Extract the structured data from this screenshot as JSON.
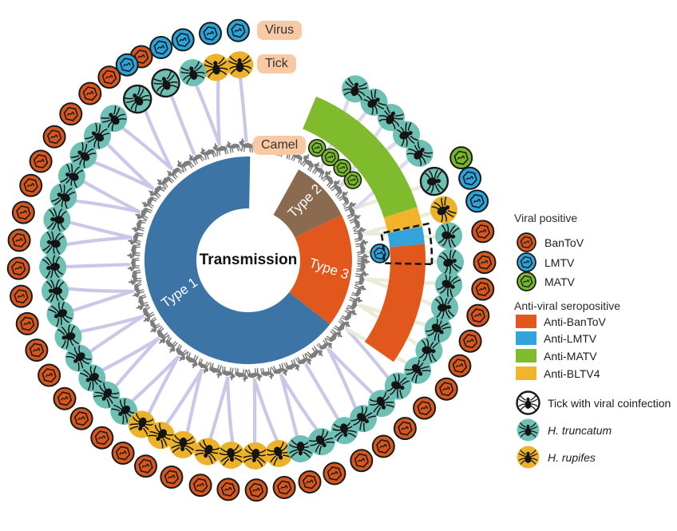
{
  "figure": {
    "center_label": "Transmission",
    "ring_labels": {
      "virus": "Virus",
      "tick": "Tick",
      "camel": "Camel"
    },
    "donut": {
      "segments": [
        {
          "label": "Type 1",
          "color": "#3b74a5",
          "start": 89,
          "end": 322
        },
        {
          "label": "Type 2",
          "color": "#8b6b50",
          "start": 26,
          "end": 61
        },
        {
          "label": "Type 3",
          "color": "#e2571c",
          "start": -38,
          "end": 26
        }
      ]
    },
    "sero_arc": {
      "segments": [
        {
          "label": "Anti-MATV",
          "color": "#7fbb2d",
          "start": 17.5,
          "end": 67.5
        },
        {
          "label": "Anti-BLTV4",
          "color": "#f2b42c",
          "start": 11,
          "end": 17.5
        },
        {
          "label": "Anti-LMTV",
          "color": "#33a3dc",
          "start": 5.3,
          "end": 11
        },
        {
          "label": "Anti-BanToV",
          "color": "#e2571c",
          "start": -35,
          "end": 5.3
        }
      ]
    },
    "highlight_box": {
      "start": -1.2,
      "end": 11.5,
      "r_inner": 170,
      "r_outer": 230
    },
    "inner_markers": [
      {
        "angle": 58.5,
        "virus": "MATV"
      },
      {
        "angle": 51.5,
        "virus": "MATV"
      },
      {
        "angle": 44.5,
        "virus": "MATV"
      },
      {
        "angle": 37.5,
        "virus": "MATV"
      },
      {
        "angle": 3,
        "virus": "LMTV"
      }
    ],
    "virus_colors": {
      "BanToV": "#d8571f",
      "LMTV": "#2ca3da",
      "MATV": "#77b82a"
    },
    "tick_colors": {
      "truncatum": "#6fc0b4",
      "rupifes": "#ecb22b",
      "coinfected": "#6fc0b4"
    },
    "link_colors": {
      "purple": "#cbc7e8",
      "cream": "#e8ecd8",
      "lavender": "#dcdaf0"
    },
    "camel_color": "#7d7d7d",
    "nodes": [
      {
        "a": 92.5,
        "t": "rupifes",
        "v": [
          "LMTV"
        ],
        "link": "purple"
      },
      {
        "a": 99.5,
        "t": "rupifes",
        "v": [
          "LMTV"
        ],
        "link": "purple"
      },
      {
        "a": 106.5,
        "t": "truncatum",
        "v": [
          "LMTV"
        ],
        "link": "purple"
      },
      {
        "a": 115,
        "t": "coinfected",
        "v": [
          "BanToV",
          "LMTV"
        ],
        "link": "purple"
      },
      {
        "a": 124.5,
        "t": "coinfected",
        "v": [
          "BanToV",
          "LMTV"
        ],
        "link": "purple"
      },
      {
        "a": 133.5,
        "t": "truncatum",
        "v": [
          "BanToV"
        ],
        "link": "purple"
      },
      {
        "a": 140.5,
        "t": "truncatum",
        "v": [
          "BanToV"
        ],
        "link": "purple"
      },
      {
        "a": 147.5,
        "t": "truncatum",
        "v": [
          "BanToV"
        ],
        "link": "purple"
      },
      {
        "a": 154.5,
        "t": "truncatum",
        "v": [
          "BanToV"
        ],
        "link": "purple"
      },
      {
        "a": 161,
        "t": "truncatum",
        "v": [
          "BanToV"
        ],
        "link": "purple"
      },
      {
        "a": 168,
        "t": "truncatum",
        "v": [
          "BanToV"
        ],
        "link": "purple"
      },
      {
        "a": 175,
        "t": "truncatum",
        "v": [
          "BanToV"
        ],
        "link": "purple"
      },
      {
        "a": 182,
        "t": "truncatum",
        "v": [
          "BanToV"
        ],
        "link": "purple"
      },
      {
        "a": 189,
        "t": "truncatum",
        "v": [
          "BanToV"
        ],
        "link": "purple"
      },
      {
        "a": 196,
        "t": "truncatum",
        "v": [
          "BanToV"
        ],
        "link": "purple"
      },
      {
        "a": 203,
        "t": "truncatum",
        "v": [
          "BanToV"
        ],
        "link": "purple"
      },
      {
        "a": 210,
        "t": "truncatum",
        "v": [
          "BanToV"
        ],
        "link": "purple"
      },
      {
        "a": 217,
        "t": "truncatum",
        "v": [
          "BanToV"
        ],
        "link": "purple"
      },
      {
        "a": 223.5,
        "t": "truncatum",
        "v": [
          "BanToV"
        ],
        "link": "purple"
      },
      {
        "a": 230.5,
        "t": "truncatum",
        "v": [
          "BanToV"
        ],
        "link": "purple"
      },
      {
        "a": 237,
        "t": "rupifes",
        "v": [
          "BanToV"
        ],
        "link": "purple"
      },
      {
        "a": 243.5,
        "t": "rupifes",
        "v": [
          "BanToV"
        ],
        "link": "purple"
      },
      {
        "a": 250.5,
        "t": "rupifes",
        "v": [
          "BanToV"
        ],
        "link": "purple"
      },
      {
        "a": 258,
        "t": "rupifes",
        "v": [
          "BanToV"
        ],
        "link": "purple"
      },
      {
        "a": 265,
        "t": "rupifes",
        "v": [
          "BanToV"
        ],
        "link": "purple"
      },
      {
        "a": 272,
        "t": "rupifes",
        "v": [
          "BanToV"
        ],
        "link": "purple"
      },
      {
        "a": 279,
        "t": "rupifes",
        "v": [
          "BanToV"
        ],
        "link": "purple"
      },
      {
        "a": 285.5,
        "t": "truncatum",
        "v": [
          "BanToV"
        ],
        "link": "purple"
      },
      {
        "a": 292,
        "t": "truncatum",
        "v": [
          "BanToV"
        ],
        "link": "purple"
      },
      {
        "a": 299.5,
        "t": "truncatum",
        "v": [
          "BanToV"
        ],
        "link": "purple"
      },
      {
        "a": 306,
        "t": "truncatum",
        "v": [
          "BanToV"
        ],
        "link": "purple"
      },
      {
        "a": 313,
        "t": "truncatum",
        "v": [
          "BanToV"
        ],
        "link": "purple"
      },
      {
        "a": 320,
        "t": "truncatum",
        "v": [
          "BanToV"
        ],
        "link": "purple"
      },
      {
        "a": 327,
        "t": "truncatum",
        "v": [
          "BanToV"
        ],
        "link": "cream"
      },
      {
        "a": 333.5,
        "t": "truncatum",
        "v": [
          "BanToV"
        ],
        "link": "cream"
      },
      {
        "a": 340,
        "t": "truncatum",
        "v": [
          "BanToV"
        ],
        "link": "cream"
      },
      {
        "a": 346.5,
        "t": "truncatum",
        "v": [
          "BanToV"
        ],
        "link": "cream"
      },
      {
        "a": 353,
        "t": "truncatum",
        "v": [
          "BanToV"
        ],
        "link": "cream"
      },
      {
        "a": 359.5,
        "t": "truncatum",
        "v": [
          "BanToV"
        ],
        "link": "cream"
      },
      {
        "a": 7,
        "t": "truncatum",
        "v": [
          "BanToV"
        ],
        "link": "cream"
      },
      {
        "a": 14.5,
        "t": "rupifes",
        "v": [
          "LMTV"
        ],
        "link": "cream"
      },
      {
        "a": 23,
        "t": "coinfected",
        "v": [
          "MATV",
          "LMTV"
        ],
        "link": "cream"
      },
      {
        "a": 32,
        "t": "truncatum",
        "v": [],
        "link": "lavender"
      },
      {
        "a": 38.5,
        "t": "truncatum",
        "v": [],
        "link": "lavender"
      },
      {
        "a": 45,
        "t": "truncatum",
        "v": [],
        "link": "lavender"
      },
      {
        "a": 51.5,
        "t": "truncatum",
        "v": [],
        "link": "lavender"
      },
      {
        "a": 58,
        "t": "truncatum",
        "v": [],
        "link": "lavender"
      }
    ]
  },
  "legend": {
    "sections": [
      {
        "header": "Viral positive",
        "type": "virus",
        "items": [
          {
            "label": "BanToV",
            "color": "#d8571f"
          },
          {
            "label": "LMTV",
            "color": "#2ca3da"
          },
          {
            "label": "MATV",
            "color": "#77b82a"
          }
        ]
      },
      {
        "header": "Anti-viral seropositive",
        "type": "swatch",
        "items": [
          {
            "label": "Anti-BanToV",
            "color": "#e2571c"
          },
          {
            "label": "Anti-LMTV",
            "color": "#33a3dc"
          },
          {
            "label": "Anti-MATV",
            "color": "#7fbb2d"
          },
          {
            "label": "Anti-BLTV4",
            "color": "#f2b42c"
          }
        ]
      },
      {
        "header": "",
        "type": "tick",
        "items": [
          {
            "label": "Tick with viral coinfection",
            "fill": "#ffffff",
            "outline": true,
            "italic": false
          },
          {
            "label": "H. truncatum",
            "fill": "#6fc0b4",
            "outline": false,
            "italic": true
          },
          {
            "label": "H. rupifes",
            "fill": "#ecb22b",
            "outline": false,
            "italic": true
          }
        ]
      }
    ]
  }
}
